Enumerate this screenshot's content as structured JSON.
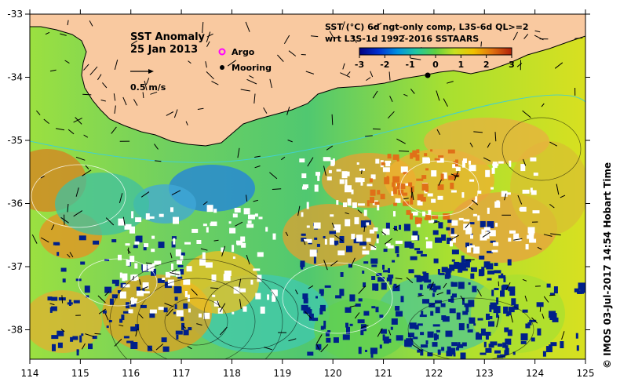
{
  "map": {
    "title": "SST Anomaly",
    "date": "25 Jan 2013",
    "scale_label": "0.5 m/s",
    "legend_argo": "Argo",
    "legend_mooring": "Mooring",
    "product_line1": "SST (°C) 6d ngt-only comp, L3S-6d QL>=2",
    "product_line2": "wrt L3S-1d 1992-2016 SSTAARS",
    "credit": "© IMOS 03-Jul-2017 14:54 Hobart Time",
    "colorbar_ticks": [
      "-3",
      "-2",
      "-1",
      "0",
      "1",
      "2",
      "3"
    ],
    "colorbar_colors": [
      "#000080",
      "#0030d0",
      "#0090e0",
      "#20c8a0",
      "#60d040",
      "#c8e020",
      "#f0c000",
      "#e07010",
      "#b02008"
    ],
    "x_ticks": [
      "114",
      "115",
      "116",
      "117",
      "118",
      "119",
      "120",
      "121",
      "122",
      "123",
      "124",
      "125"
    ],
    "y_ticks": [
      "-33",
      "-34",
      "-35",
      "-36",
      "-37",
      "-38"
    ],
    "land_color": "#f9c9a0"
  }
}
